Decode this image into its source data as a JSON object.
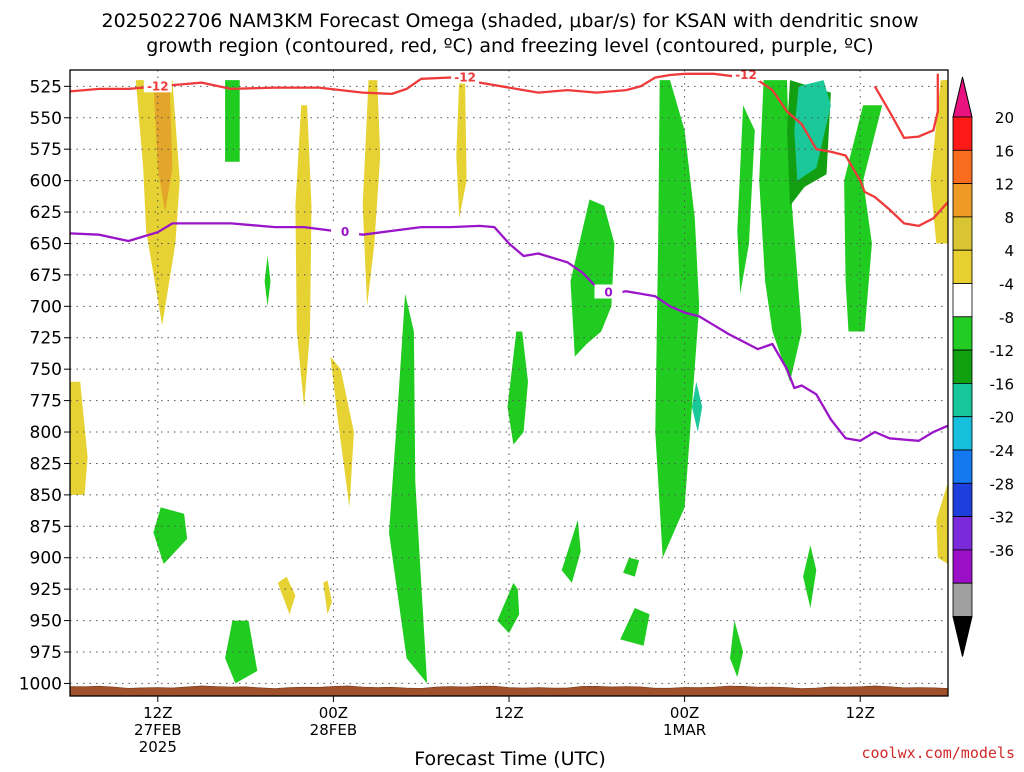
{
  "chart_data": {
    "type": "contour",
    "title_line1": "2025022706 NAM3KM Forecast Omega (shaded, μbar/s) for KSAN with dendritic snow",
    "title_line2": "growth region (contoured, red, ºC) and freezing level (contoured, purple, ºC)",
    "xlabel": "Forecast Time (UTC)",
    "credit": "coolwx.com/models",
    "y_levels": [
      "525",
      "550",
      "575",
      "600",
      "625",
      "650",
      "675",
      "700",
      "725",
      "750",
      "775",
      "800",
      "825",
      "850",
      "875",
      "900",
      "925",
      "950",
      "975",
      "1000"
    ],
    "x_ticks": [
      {
        "hour": 12,
        "l1": "12Z",
        "l2": "27FEB",
        "l3": "2025"
      },
      {
        "hour": 24,
        "l1": "00Z",
        "l2": "28FEB",
        "l3": ""
      },
      {
        "hour": 36,
        "l1": "12Z",
        "l2": "",
        "l3": ""
      },
      {
        "hour": 48,
        "l1": "00Z",
        "l2": "1MAR",
        "l3": ""
      },
      {
        "hour": 60,
        "l1": "12Z",
        "l2": "",
        "l3": ""
      }
    ],
    "x_range_hours": [
      6,
      66
    ],
    "y_range_mb": [
      512,
      1010
    ],
    "grid": true,
    "colorbar": {
      "labels": [
        "20",
        "16",
        "12",
        "8",
        "4",
        "-4",
        "-8",
        "-12",
        "-16",
        "-20",
        "-24",
        "-28",
        "-32",
        "-36"
      ],
      "colors": [
        "#ff1a1a",
        "#f96b1f",
        "#ee9a24",
        "#d9c431",
        "#e8d030",
        "#ffffff",
        "#22cc22",
        "#10a010",
        "#16c79b",
        "#16c0dd",
        "#1478f0",
        "#1e3fdc",
        "#7a2ad8",
        "#9b0fc8",
        "#a0a0a0"
      ],
      "top_arrow_color": "#e8137f",
      "bottom_arrow_color": "#000000"
    },
    "contour_labels": {
      "snow_growth": "-12",
      "freezing": "0"
    },
    "snow_growth_line": [
      [
        6,
        529
      ],
      [
        8,
        527
      ],
      [
        10,
        527
      ],
      [
        11,
        526
      ],
      [
        13,
        524
      ],
      [
        15,
        522
      ],
      [
        17,
        527
      ],
      [
        20,
        526
      ],
      [
        23,
        526
      ],
      [
        26,
        530
      ],
      [
        28,
        531
      ],
      [
        29,
        527
      ],
      [
        30,
        519
      ],
      [
        32,
        518
      ],
      [
        34,
        522
      ],
      [
        36,
        526
      ],
      [
        38,
        530
      ],
      [
        40,
        528
      ],
      [
        42,
        530
      ],
      [
        44,
        528
      ],
      [
        45,
        525
      ],
      [
        46,
        518
      ],
      [
        47,
        516
      ],
      [
        48,
        515
      ],
      [
        50,
        515
      ],
      [
        52,
        518
      ],
      [
        53,
        520
      ],
      [
        54,
        528
      ],
      [
        55,
        545
      ],
      [
        56,
        555
      ],
      [
        57,
        575
      ],
      [
        58,
        577
      ],
      [
        59,
        580
      ],
      [
        60,
        600
      ],
      [
        60.3,
        609
      ],
      [
        61,
        613
      ],
      [
        62,
        623
      ],
      [
        63,
        634
      ],
      [
        64,
        636
      ],
      [
        65,
        630
      ],
      [
        66,
        617
      ]
    ],
    "snow_growth_upper": [
      [
        61,
        525
      ],
      [
        62,
        545
      ],
      [
        63,
        566
      ],
      [
        64,
        565
      ],
      [
        65,
        560
      ],
      [
        65.3,
        545
      ],
      [
        65.3,
        515
      ]
    ],
    "freezing_line": [
      [
        6,
        642
      ],
      [
        8,
        643
      ],
      [
        10,
        648
      ],
      [
        12,
        641
      ],
      [
        13,
        634
      ],
      [
        15,
        634
      ],
      [
        17,
        634
      ],
      [
        20,
        637
      ],
      [
        22,
        637
      ],
      [
        24,
        640
      ],
      [
        26,
        643
      ],
      [
        28,
        640
      ],
      [
        30,
        637
      ],
      [
        32,
        637
      ],
      [
        34,
        636
      ],
      [
        35,
        637
      ],
      [
        36,
        650
      ],
      [
        37,
        660
      ],
      [
        38,
        658
      ],
      [
        40,
        665
      ],
      [
        41,
        673
      ],
      [
        42,
        685
      ],
      [
        43,
        690
      ],
      [
        44,
        688
      ],
      [
        46,
        692
      ],
      [
        47,
        700
      ],
      [
        48,
        705
      ],
      [
        49,
        708
      ],
      [
        50,
        715
      ],
      [
        51,
        722
      ],
      [
        52,
        728
      ],
      [
        53,
        734
      ],
      [
        54,
        730
      ],
      [
        55,
        750
      ],
      [
        55.5,
        765
      ],
      [
        56,
        763
      ],
      [
        57,
        770
      ],
      [
        58,
        790
      ],
      [
        59,
        805
      ],
      [
        60,
        807
      ],
      [
        61,
        800
      ],
      [
        62,
        805
      ],
      [
        63,
        806
      ],
      [
        64,
        807
      ],
      [
        65,
        800
      ],
      [
        66,
        795
      ]
    ],
    "omega_regions": [
      {
        "class": "pos4",
        "points": [
          [
            10.5,
            520
          ],
          [
            11,
            590
          ],
          [
            11.2,
            640
          ],
          [
            12.3,
            715
          ],
          [
            13.2,
            650
          ],
          [
            13.5,
            600
          ],
          [
            13,
            520
          ]
        ]
      },
      {
        "class": "pos8",
        "points": [
          [
            11.7,
            520
          ],
          [
            12,
            590
          ],
          [
            12.5,
            625
          ],
          [
            13,
            590
          ],
          [
            12.8,
            520
          ]
        ]
      },
      {
        "class": "pos4",
        "points": [
          [
            6,
            760
          ],
          [
            6,
            850
          ],
          [
            7,
            850
          ],
          [
            7.2,
            820
          ],
          [
            6.7,
            760
          ]
        ]
      },
      {
        "class": "pos4",
        "points": [
          [
            21.8,
            540
          ],
          [
            21.4,
            620
          ],
          [
            21.5,
            720
          ],
          [
            22,
            780
          ],
          [
            22.4,
            720
          ],
          [
            22.5,
            620
          ],
          [
            22.2,
            540
          ]
        ]
      },
      {
        "class": "pos4",
        "points": [
          [
            26.4,
            520
          ],
          [
            26,
            620
          ],
          [
            26.3,
            700
          ],
          [
            26.8,
            650
          ],
          [
            27.2,
            580
          ],
          [
            27,
            520
          ]
        ]
      },
      {
        "class": "pos4",
        "points": [
          [
            32.6,
            520
          ],
          [
            32.4,
            580
          ],
          [
            32.6,
            630
          ],
          [
            33.1,
            600
          ],
          [
            33,
            520
          ]
        ]
      },
      {
        "class": "pos4",
        "points": [
          [
            23.8,
            740
          ],
          [
            24.3,
            790
          ],
          [
            25.1,
            860
          ],
          [
            25.4,
            800
          ],
          [
            24.5,
            750
          ]
        ]
      },
      {
        "class": "pos4",
        "points": [
          [
            20.2,
            920
          ],
          [
            21,
            945
          ],
          [
            21.4,
            930
          ],
          [
            20.8,
            915
          ]
        ]
      },
      {
        "class": "pos4",
        "points": [
          [
            23.3,
            920
          ],
          [
            23.6,
            945
          ],
          [
            23.9,
            935
          ],
          [
            23.6,
            918
          ]
        ]
      },
      {
        "class": "pos4",
        "points": [
          [
            65.5,
            520
          ],
          [
            64.8,
            600
          ],
          [
            65.2,
            650
          ],
          [
            66,
            650
          ],
          [
            66,
            520
          ]
        ]
      },
      {
        "class": "pos4",
        "points": [
          [
            66,
            840
          ],
          [
            65.2,
            870
          ],
          [
            65.3,
            900
          ],
          [
            66,
            905
          ]
        ]
      },
      {
        "class": "neg4",
        "points": [
          [
            16.6,
            520
          ],
          [
            16.6,
            585
          ],
          [
            17.6,
            585
          ],
          [
            17.6,
            520
          ]
        ]
      },
      {
        "class": "neg4",
        "points": [
          [
            53.4,
            520
          ],
          [
            53.1,
            600
          ],
          [
            53.5,
            680
          ],
          [
            54,
            720
          ],
          [
            55.2,
            760
          ],
          [
            56,
            720
          ],
          [
            55.2,
            600
          ],
          [
            55,
            520
          ]
        ]
      },
      {
        "class": "neg4",
        "points": [
          [
            41.5,
            615
          ],
          [
            40.2,
            680
          ],
          [
            40.5,
            740
          ],
          [
            41.3,
            730
          ],
          [
            42.3,
            720
          ],
          [
            43,
            700
          ],
          [
            43.2,
            650
          ],
          [
            42.5,
            620
          ]
        ]
      },
      {
        "class": "neg4",
        "points": [
          [
            46.3,
            520
          ],
          [
            46.2,
            640
          ],
          [
            46,
            800
          ],
          [
            46.5,
            900
          ],
          [
            48,
            860
          ],
          [
            49,
            700
          ],
          [
            48.7,
            630
          ],
          [
            48,
            560
          ],
          [
            47,
            520
          ]
        ]
      },
      {
        "class": "neg4",
        "points": [
          [
            52,
            540
          ],
          [
            51.6,
            640
          ],
          [
            51.8,
            690
          ],
          [
            52.4,
            650
          ],
          [
            52.8,
            560
          ]
        ]
      },
      {
        "class": "neg4",
        "points": [
          [
            36.5,
            720
          ],
          [
            35.9,
            780
          ],
          [
            36.3,
            810
          ],
          [
            37,
            800
          ],
          [
            37.3,
            760
          ],
          [
            36.9,
            720
          ]
        ]
      },
      {
        "class": "neg4",
        "points": [
          [
            28.9,
            690
          ],
          [
            28.4,
            780
          ],
          [
            27.8,
            880
          ],
          [
            29,
            980
          ],
          [
            30.4,
            1000
          ],
          [
            30.1,
            940
          ],
          [
            29.6,
            840
          ],
          [
            29.5,
            720
          ]
        ]
      },
      {
        "class": "neg4",
        "points": [
          [
            60.2,
            540
          ],
          [
            58.9,
            600
          ],
          [
            59,
            680
          ],
          [
            59.2,
            720
          ],
          [
            60.3,
            720
          ],
          [
            60.8,
            650
          ],
          [
            60.2,
            600
          ],
          [
            61.5,
            540
          ]
        ]
      },
      {
        "class": "neg4",
        "points": [
          [
            19.5,
            660
          ],
          [
            19.3,
            680
          ],
          [
            19.5,
            700
          ],
          [
            19.7,
            680
          ]
        ]
      },
      {
        "class": "neg4",
        "points": [
          [
            12.2,
            860
          ],
          [
            11.7,
            880
          ],
          [
            12.4,
            905
          ],
          [
            14,
            885
          ],
          [
            13.8,
            865
          ]
        ]
      },
      {
        "class": "neg4",
        "points": [
          [
            17.1,
            950
          ],
          [
            16.6,
            980
          ],
          [
            17.3,
            1000
          ],
          [
            18.8,
            990
          ],
          [
            18.2,
            950
          ]
        ]
      },
      {
        "class": "neg4",
        "points": [
          [
            36.3,
            920
          ],
          [
            35.2,
            950
          ],
          [
            36,
            960
          ],
          [
            36.7,
            945
          ],
          [
            36.6,
            925
          ]
        ]
      },
      {
        "class": "neg4",
        "points": [
          [
            40.7,
            870
          ],
          [
            39.6,
            910
          ],
          [
            40.3,
            920
          ],
          [
            40.9,
            895
          ]
        ]
      },
      {
        "class": "neg4",
        "points": [
          [
            44.2,
            900
          ],
          [
            43.8,
            912
          ],
          [
            44.6,
            915
          ],
          [
            44.9,
            902
          ]
        ]
      },
      {
        "class": "neg4",
        "points": [
          [
            44.6,
            940
          ],
          [
            43.6,
            965
          ],
          [
            45.2,
            970
          ],
          [
            45.6,
            945
          ]
        ]
      },
      {
        "class": "neg4",
        "points": [
          [
            51.4,
            950
          ],
          [
            51.1,
            980
          ],
          [
            51.6,
            995
          ],
          [
            52,
            975
          ]
        ]
      },
      {
        "class": "neg4",
        "points": [
          [
            56.6,
            890
          ],
          [
            56.1,
            915
          ],
          [
            56.6,
            940
          ],
          [
            57,
            910
          ]
        ]
      },
      {
        "class": "neg8",
        "points": [
          [
            55.2,
            520
          ],
          [
            55,
            560
          ],
          [
            55.2,
            620
          ],
          [
            56.2,
            605
          ],
          [
            57.7,
            595
          ],
          [
            58,
            530
          ]
        ]
      },
      {
        "class": "neg12",
        "points": [
          [
            55.8,
            525
          ],
          [
            55.5,
            560
          ],
          [
            55.7,
            600
          ],
          [
            57,
            590
          ],
          [
            58,
            540
          ],
          [
            57.5,
            520
          ]
        ]
      },
      {
        "class": "neg12",
        "points": [
          [
            48.8,
            760
          ],
          [
            48.5,
            780
          ],
          [
            48.9,
            800
          ],
          [
            49.2,
            780
          ]
        ]
      }
    ],
    "terrain_top_mb": 1003
  }
}
